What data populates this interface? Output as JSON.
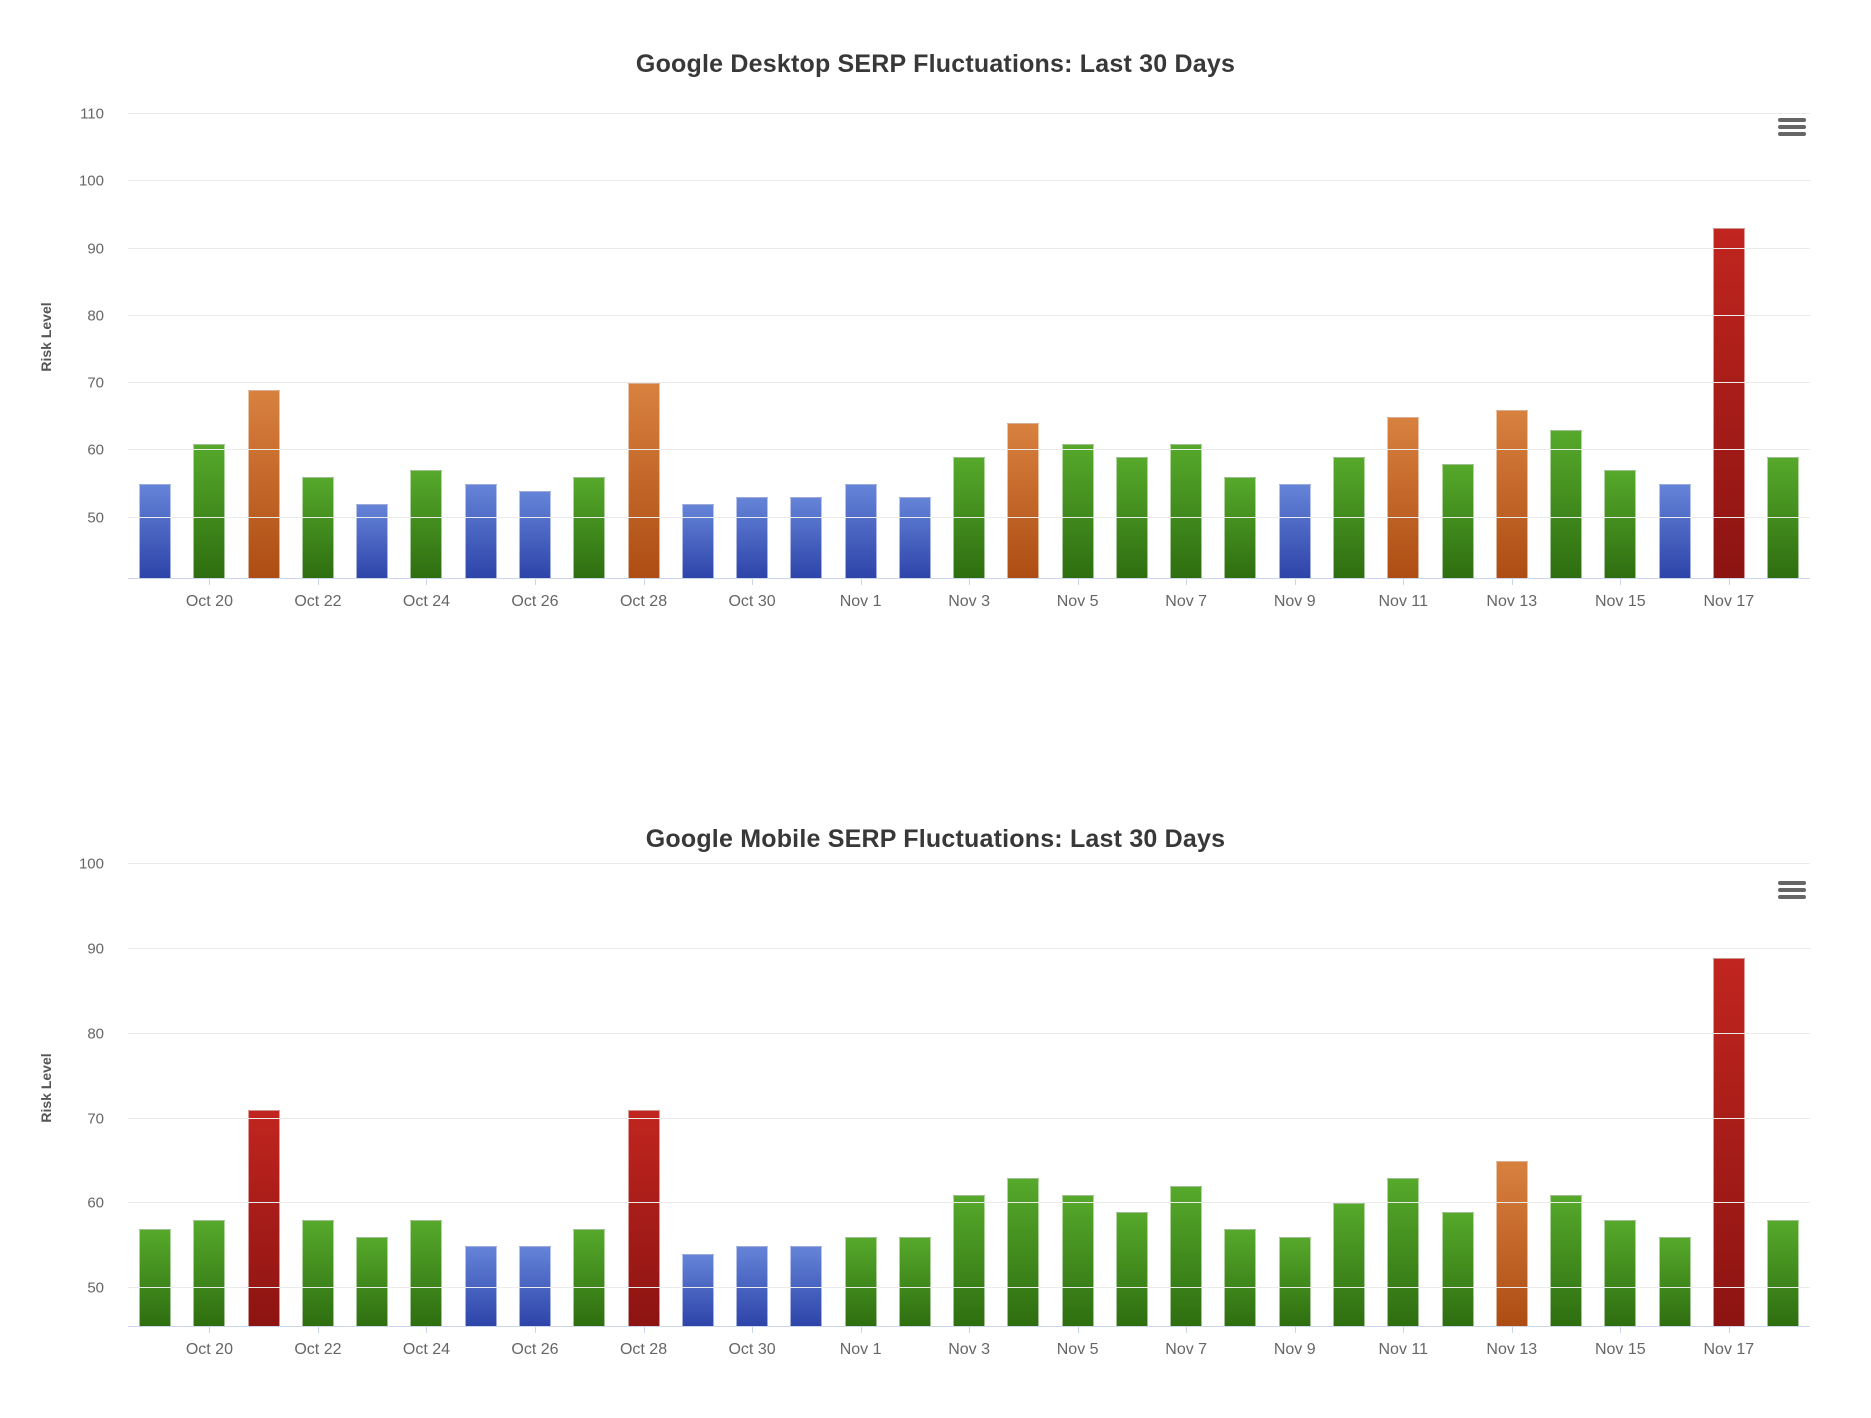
{
  "colors": {
    "blue_top": "#6584d8",
    "blue_bottom": "#2d44a9",
    "green_top": "#56a92b",
    "green_bottom": "#2e6e10",
    "orange_top": "#d8813f",
    "orange_bottom": "#ad4d13",
    "red_top": "#c1251f",
    "red_bottom": "#8c1412",
    "grid": "#ebebeb",
    "axis_line": "#ccd6eb",
    "axis_label": "#666666",
    "title": "#383838",
    "menu_icon": "#666666",
    "background": "#ffffff"
  },
  "chart_data": [
    {
      "id": "desktop",
      "type": "bar",
      "title": "Google Desktop SERP Fluctuations: Last 30 Days",
      "ylabel": "Risk Level",
      "xlabel": "",
      "ylim": [
        41,
        112.7
      ],
      "yticks": [
        50,
        60,
        70,
        80,
        90,
        100,
        110
      ],
      "grid": true,
      "legend": false,
      "categories": [
        "Oct 19",
        "Oct 20",
        "Oct 21",
        "Oct 22",
        "Oct 23",
        "Oct 24",
        "Oct 25",
        "Oct 26",
        "Oct 27",
        "Oct 28",
        "Oct 29",
        "Oct 30",
        "Oct 31",
        "Nov 1",
        "Nov 2",
        "Nov 3",
        "Nov 4",
        "Nov 5",
        "Nov 6",
        "Nov 7",
        "Nov 8",
        "Nov 9",
        "Nov 10",
        "Nov 11",
        "Nov 12",
        "Nov 13",
        "Nov 14",
        "Nov 15",
        "Nov 16",
        "Nov 17",
        "Nov 18"
      ],
      "values": [
        55,
        61,
        69,
        56,
        52,
        57,
        55,
        54,
        56,
        70,
        52,
        53,
        53,
        55,
        53,
        59,
        64,
        61,
        59,
        61,
        56,
        55,
        59,
        65,
        58,
        66,
        63,
        57,
        55,
        93,
        59
      ],
      "bar_colors": [
        "blue",
        "green",
        "orange",
        "green",
        "blue",
        "green",
        "blue",
        "blue",
        "green",
        "orange",
        "blue",
        "blue",
        "blue",
        "blue",
        "blue",
        "green",
        "orange",
        "green",
        "green",
        "green",
        "green",
        "blue",
        "green",
        "orange",
        "green",
        "orange",
        "green",
        "green",
        "blue",
        "red",
        "green"
      ],
      "xtick_labels": [
        "Oct 20",
        "Oct 22",
        "Oct 24",
        "Oct 26",
        "Oct 28",
        "Oct 30",
        "Nov 1",
        "Nov 3",
        "Nov 5",
        "Nov 7",
        "Nov 9",
        "Nov 11",
        "Nov 13",
        "Nov 15",
        "Nov 17"
      ]
    },
    {
      "id": "mobile",
      "type": "bar",
      "title": "Google Mobile SERP Fluctuations: Last 30 Days",
      "ylabel": "Risk Level",
      "xlabel": "",
      "ylim": [
        45.5,
        101.7
      ],
      "yticks": [
        50,
        60,
        70,
        80,
        90,
        100
      ],
      "grid": true,
      "legend": false,
      "categories": [
        "Oct 19",
        "Oct 20",
        "Oct 21",
        "Oct 22",
        "Oct 23",
        "Oct 24",
        "Oct 25",
        "Oct 26",
        "Oct 27",
        "Oct 28",
        "Oct 29",
        "Oct 30",
        "Oct 31",
        "Nov 1",
        "Nov 2",
        "Nov 3",
        "Nov 4",
        "Nov 5",
        "Nov 6",
        "Nov 7",
        "Nov 8",
        "Nov 9",
        "Nov 10",
        "Nov 11",
        "Nov 12",
        "Nov 13",
        "Nov 14",
        "Nov 15",
        "Nov 16",
        "Nov 17",
        "Nov 18"
      ],
      "values": [
        57,
        58,
        71,
        58,
        56,
        58,
        55,
        55,
        57,
        71,
        54,
        55,
        55,
        56,
        56,
        61,
        63,
        61,
        59,
        62,
        57,
        56,
        60,
        63,
        59,
        65,
        61,
        58,
        56,
        89,
        58
      ],
      "bar_colors": [
        "green",
        "green",
        "red",
        "green",
        "green",
        "green",
        "blue",
        "blue",
        "green",
        "red",
        "blue",
        "blue",
        "blue",
        "green",
        "green",
        "green",
        "green",
        "green",
        "green",
        "green",
        "green",
        "green",
        "green",
        "green",
        "green",
        "orange",
        "green",
        "green",
        "green",
        "red",
        "green"
      ],
      "xtick_labels": [
        "Oct 20",
        "Oct 22",
        "Oct 24",
        "Oct 26",
        "Oct 28",
        "Oct 30",
        "Nov 1",
        "Nov 3",
        "Nov 5",
        "Nov 7",
        "Nov 9",
        "Nov 11",
        "Nov 13",
        "Nov 15",
        "Nov 17"
      ]
    }
  ]
}
